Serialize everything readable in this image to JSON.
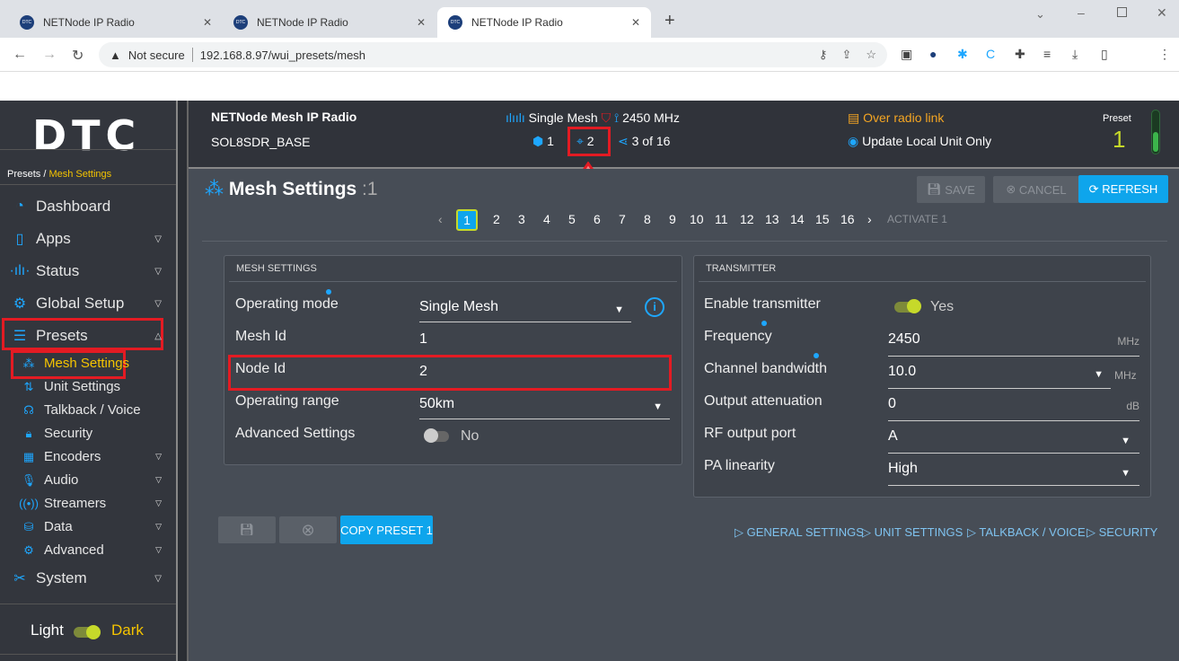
{
  "browser": {
    "tabs": [
      {
        "title": "NETNode IP Radio",
        "fav": "DTC"
      },
      {
        "title": "NETNode IP Radio",
        "fav": "DTC"
      },
      {
        "title": "NETNode IP Radio",
        "fav": "DTC"
      }
    ],
    "security": "Not secure",
    "url": "192.168.8.97/wui_presets/mesh"
  },
  "sidebar": {
    "logo": "DTC",
    "breadcrumb": {
      "parent": "Presets / ",
      "current": "Mesh Settings"
    },
    "items": [
      {
        "label": "Dashboard",
        "icon": "dashboard-icon"
      },
      {
        "label": "Apps",
        "icon": "phone-icon"
      },
      {
        "label": "Status",
        "icon": "waveform-icon"
      },
      {
        "label": "Global Setup",
        "icon": "gear-icon"
      },
      {
        "label": "Presets",
        "icon": "list-icon"
      }
    ],
    "sub": [
      {
        "label": "Mesh Settings",
        "icon": "mesh-icon"
      },
      {
        "label": "Unit Settings",
        "icon": "unit-icon"
      },
      {
        "label": "Talkback / Voice",
        "icon": "headset-icon"
      },
      {
        "label": "Security",
        "icon": "lock-icon"
      },
      {
        "label": "Encoders",
        "icon": "encoder-icon"
      },
      {
        "label": "Audio",
        "icon": "microphone-icon"
      },
      {
        "label": "Streamers",
        "icon": "broadcast-icon"
      },
      {
        "label": "Data",
        "icon": "database-icon"
      },
      {
        "label": "Advanced",
        "icon": "gears-icon"
      }
    ],
    "system": {
      "label": "System",
      "icon": "tools-icon"
    },
    "theme": {
      "light": "Light",
      "dark": "Dark"
    }
  },
  "header": {
    "product": "NETNode Mesh IP Radio",
    "unit": "SOL8SDR_BASE",
    "mode": "Single Mesh",
    "freq": "2450 MHz",
    "mesh_id": "1",
    "node_id": "2",
    "nodes": "3 of 16",
    "link": "Over radio link",
    "update": "Update Local Unit Only",
    "preset_label": "Preset",
    "preset": "1"
  },
  "page": {
    "title": "Mesh Settings",
    "suffix": ":1",
    "save": "SAVE",
    "cancel": "CANCEL",
    "refresh": "REFRESH",
    "pages": [
      "1",
      "2",
      "3",
      "4",
      "5",
      "6",
      "7",
      "8",
      "9",
      "10",
      "11",
      "12",
      "13",
      "14",
      "15",
      "16"
    ],
    "activate": "ACTIVATE 1"
  },
  "mesh": {
    "title": "MESH SETTINGS",
    "rows": [
      {
        "label": "Operating mode",
        "value": "Single Mesh"
      },
      {
        "label": "Mesh Id",
        "value": "1"
      },
      {
        "label": "Node Id",
        "value": "2"
      },
      {
        "label": "Operating range",
        "value": "50km"
      },
      {
        "label": "Advanced Settings",
        "value": "No"
      }
    ]
  },
  "tx": {
    "title": "TRANSMITTER",
    "rows": [
      {
        "label": "Enable transmitter",
        "value": "Yes"
      },
      {
        "label": "Frequency",
        "value": "2450",
        "unit": "MHz"
      },
      {
        "label": "Channel bandwidth",
        "value": "10.0",
        "unit": "MHz"
      },
      {
        "label": "Output attenuation",
        "value": "0",
        "unit": "dB"
      },
      {
        "label": "RF output port",
        "value": "A"
      },
      {
        "label": "PA linearity",
        "value": "High"
      }
    ]
  },
  "footer": {
    "copy": "COPY PRESET 1",
    "links": [
      "GENERAL SETTINGS",
      "UNIT SETTINGS",
      "TALKBACK / VOICE",
      "SECURITY"
    ]
  },
  "colors": {
    "accent": "#1ea7ff",
    "highlight": "#f5c400",
    "annotation": "#e31b23",
    "toggle_on": "#c6d92a"
  }
}
